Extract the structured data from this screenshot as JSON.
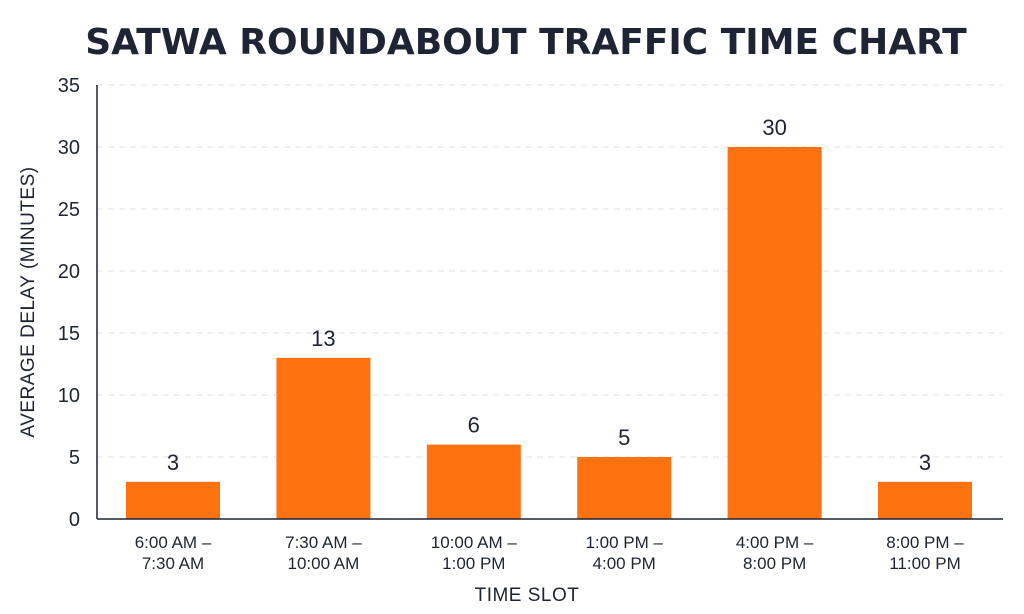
{
  "chart_data": {
    "type": "bar",
    "title": "SATWA ROUNDABOUT TRAFFIC TIME CHART",
    "xlabel": "TIME SLOT",
    "ylabel": "AVERAGE DELAY (MINUTES)",
    "ylim": [
      0,
      35
    ],
    "yticks": [
      "0",
      "5",
      "10",
      "15",
      "20",
      "25",
      "30",
      "35"
    ],
    "grid": true,
    "categories": [
      [
        "6:00 AM –",
        "7:30 AM"
      ],
      [
        "7:30 AM –",
        "10:00 AM"
      ],
      [
        "10:00 AM –",
        "1:00 PM"
      ],
      [
        "1:00 PM –",
        "4:00 PM"
      ],
      [
        "4:00 PM –",
        "8:00 PM"
      ],
      [
        "8:00 PM –",
        "11:00 PM"
      ]
    ],
    "values": [
      3,
      13,
      6,
      5,
      30,
      3
    ],
    "data_labels": [
      "3",
      "13",
      "6",
      "5",
      "30",
      "3"
    ],
    "bar_color": "#ff7210"
  }
}
